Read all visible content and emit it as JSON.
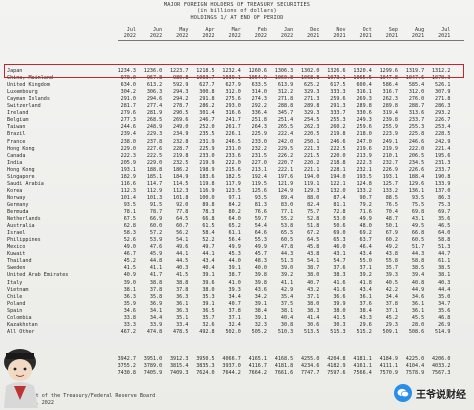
{
  "title": {
    "line1": "MAJOR FOREIGN HOLDERS OF TREASURY SECURITIES",
    "line2": "(in billions of dollars)",
    "line3": "HOLDINGS 1/ AT END OF PERIOD"
  },
  "columns": [
    {
      "month": "Jul",
      "year": "2022"
    },
    {
      "month": "Jun",
      "year": "2022"
    },
    {
      "month": "May",
      "year": "2022"
    },
    {
      "month": "Apr",
      "year": "2022"
    },
    {
      "month": "Mar",
      "year": "2022"
    },
    {
      "month": "Feb",
      "year": "2022"
    },
    {
      "month": "Jan",
      "year": "2022"
    },
    {
      "month": "Dec",
      "year": "2021"
    },
    {
      "month": "Nov",
      "year": "2021"
    },
    {
      "month": "Oct",
      "year": "2021"
    },
    {
      "month": "Sep",
      "year": "2021"
    },
    {
      "month": "Aug",
      "year": "2021"
    },
    {
      "month": "Jul",
      "year": "2021"
    }
  ],
  "rows": [
    {
      "name": "Japan",
      "values": [
        "1234.3",
        "1236.0",
        "1223.7",
        "1218.5",
        "1232.4",
        "1260.6",
        "1306.3",
        "1302.0",
        "1326.6",
        "1320.4",
        "1299.6",
        "1319.7",
        "1312.2"
      ]
    },
    {
      "name": "China, Mainland",
      "values": [
        "970.0",
        "967.8",
        "980.8",
        "1003.7",
        "1039.1",
        "1054.9",
        "1060.8",
        "1068.8",
        "1073.1",
        "1065.5",
        "1047.8",
        "1047.6",
        "1070.3"
      ]
    },
    {
      "name": "United Kingdom",
      "values": [
        "634.0",
        "613.2",
        "592.9",
        "627.7",
        "627.9",
        "633.5",
        "613.9",
        "625.2",
        "617.5",
        "600.4",
        "586.4",
        "585.4",
        "526.1"
      ]
    },
    {
      "name": "Luxembourg",
      "values": [
        "304.2",
        "306.3",
        "294.3",
        "300.8",
        "312.0",
        "314.0",
        "312.2",
        "329.3",
        "333.3",
        "316.1",
        "316.7",
        "312.0",
        "307.9"
      ]
    },
    {
      "name": "Cayman Islands",
      "values": [
        "291.0",
        "294.6",
        "294.2",
        "291.8",
        "275.6",
        "274.3",
        "271.8",
        "271.3",
        "259.6",
        "269.3",
        "262.3",
        "276.0",
        "271.8"
      ]
    },
    {
      "name": "Switzerland",
      "values": [
        "281.7",
        "277.4",
        "278.7",
        "286.2",
        "293.0",
        "292.2",
        "288.8",
        "289.8",
        "291.3",
        "289.8",
        "289.8",
        "288.7",
        "286.3"
      ]
    },
    {
      "name": "Ireland",
      "values": [
        "279.6",
        "281.9",
        "290.5",
        "301.4",
        "316.6",
        "336.4",
        "345.7",
        "329.3",
        "333.7",
        "330.6",
        "319.4",
        "313.6",
        "293.2"
      ]
    },
    {
      "name": "Belgium",
      "values": [
        "277.3",
        "268.5",
        "269.6",
        "246.7",
        "241.7",
        "251.8",
        "251.4",
        "254.5",
        "255.3",
        "249.3",
        "239.8",
        "233.7",
        "226.7"
      ]
    },
    {
      "name": "Taiwan",
      "values": [
        "244.6",
        "248.9",
        "249.0",
        "252.0",
        "261.7",
        "264.3",
        "265.5",
        "262.3",
        "260.2",
        "259.6",
        "255.9",
        "255.3",
        "253.4"
      ]
    },
    {
      "name": "Brazil",
      "values": [
        "239.4",
        "229.3",
        "234.9",
        "235.5",
        "226.1",
        "225.9",
        "222.4",
        "220.5",
        "219.8",
        "218.0",
        "223.9",
        "225.8",
        "228.5"
      ]
    },
    {
      "name": "France",
      "values": [
        "238.0",
        "237.8",
        "232.8",
        "231.9",
        "246.5",
        "233.0",
        "242.0",
        "250.1",
        "246.6",
        "247.0",
        "249.1",
        "246.6",
        "242.9"
      ]
    },
    {
      "name": "Hong Kong",
      "values": [
        "229.0",
        "227.6",
        "228.7",
        "225.9",
        "231.0",
        "232.2",
        "229.5",
        "221.3",
        "222.5",
        "219.6",
        "219.9",
        "222.0",
        "221.4"
      ]
    },
    {
      "name": "Canada",
      "values": [
        "222.3",
        "222.5",
        "219.8",
        "233.0",
        "233.6",
        "231.5",
        "226.2",
        "221.5",
        "220.0",
        "213.9",
        "210.1",
        "206.5",
        "195.6"
      ]
    },
    {
      "name": "India",
      "values": [
        "205.9",
        "229.0",
        "232.5",
        "219.9",
        "222.0",
        "227.0",
        "220.7",
        "220.2",
        "218.8",
        "222.3",
        "232.7",
        "234.5",
        "231.3"
      ]
    },
    {
      "name": "Hong Kong",
      "values": [
        "193.1",
        "188.8",
        "186.2",
        "198.9",
        "215.6",
        "213.1",
        "222.1",
        "221.1",
        "228.1",
        "232.1",
        "226.9",
        "226.6",
        "233.7"
      ]
    },
    {
      "name": "Singapore",
      "values": [
        "182.9",
        "185.1",
        "184.9",
        "183.6",
        "182.5",
        "192.4",
        "197.6",
        "194.0",
        "194.0",
        "193.5",
        "193.1",
        "188.4",
        "190.8"
      ]
    },
    {
      "name": "Saudi Arabia",
      "values": [
        "116.6",
        "114.7",
        "114.5",
        "119.8",
        "117.9",
        "119.5",
        "121.9",
        "119.1",
        "122.1",
        "124.8",
        "125.7",
        "129.6",
        "133.9"
      ]
    },
    {
      "name": "Korea",
      "values": [
        "112.3",
        "112.9",
        "112.3",
        "116.9",
        "123.5",
        "125.6",
        "124.9",
        "129.3",
        "132.0",
        "133.2",
        "133.2",
        "136.1",
        "137.0"
      ]
    },
    {
      "name": "Norway",
      "values": [
        "101.4",
        "101.3",
        "101.8",
        "100.0",
        "97.1",
        "93.5",
        "89.4",
        "88.0",
        "87.4",
        "90.7",
        "88.5",
        "93.5",
        "86.3"
      ]
    },
    {
      "name": "Germany",
      "values": [
        "93.5",
        "91.5",
        "92.0",
        "89.8",
        "84.2",
        "81.3",
        "83.0",
        "82.4",
        "81.1",
        "79.2",
        "76.5",
        "75.5",
        "75.3"
      ]
    },
    {
      "name": "Bermuda",
      "values": [
        "78.1",
        "78.7",
        "77.8",
        "78.3",
        "80.2",
        "76.6",
        "77.1",
        "75.7",
        "72.8",
        "71.6",
        "70.4",
        "69.8",
        "69.7"
      ]
    },
    {
      "name": "Netherlands",
      "values": [
        "67.5",
        "66.9",
        "64.5",
        "66.8",
        "64.0",
        "59.7",
        "55.2",
        "52.8",
        "53.0",
        "49.9",
        "48.7",
        "43.1",
        "35.6"
      ]
    },
    {
      "name": "Australia",
      "values": [
        "62.8",
        "60.0",
        "60.7",
        "61.5",
        "65.2",
        "54.4",
        "53.8",
        "51.8",
        "50.6",
        "48.0",
        "50.1",
        "49.5",
        "46.5"
      ]
    },
    {
      "name": "Israel",
      "values": [
        "58.3",
        "57.2",
        "56.2",
        "58.4",
        "61.1",
        "64.6",
        "65.5",
        "67.2",
        "69.0",
        "69.2",
        "67.9",
        "66.8",
        "64.0"
      ]
    },
    {
      "name": "Philippines",
      "values": [
        "52.6",
        "53.9",
        "54.1",
        "52.2",
        "56.4",
        "55.3",
        "60.5",
        "64.5",
        "65.3",
        "63.7",
        "60.2",
        "60.5",
        "58.8"
      ]
    },
    {
      "name": "Mexico",
      "values": [
        "49.0",
        "47.6",
        "49.6",
        "49.7",
        "49.9",
        "49.9",
        "47.8",
        "45.8",
        "46.0",
        "46.4",
        "49.2",
        "51.7",
        "51.3"
      ]
    },
    {
      "name": "Kuwait",
      "values": [
        "46.7",
        "45.9",
        "44.1",
        "44.1",
        "45.3",
        "45.7",
        "44.3",
        "43.8",
        "43.1",
        "43.4",
        "43.8",
        "44.3",
        "44.7"
      ]
    },
    {
      "name": "Thailand",
      "values": [
        "45.2",
        "44.8",
        "44.5",
        "43.4",
        "44.0",
        "48.3",
        "51.3",
        "54.1",
        "54.7",
        "55.0",
        "55.8",
        "58.8",
        "61.1"
      ]
    },
    {
      "name": "Sweden",
      "values": [
        "41.5",
        "41.1",
        "40.3",
        "40.4",
        "39.1",
        "40.0",
        "39.0",
        "38.7",
        "37.6",
        "37.1",
        "35.7",
        "38.5",
        "38.5"
      ]
    },
    {
      "name": "United Arab Emirates",
      "values": [
        "40.9",
        "41.7",
        "41.5",
        "39.1",
        "38.7",
        "39.8",
        "39.2",
        "38.0",
        "38.3",
        "39.2",
        "39.3",
        "39.4",
        "38.1"
      ]
    },
    {
      "name": "Italy",
      "values": [
        "39.0",
        "38.8",
        "38.8",
        "39.6",
        "41.0",
        "39.8",
        "41.1",
        "40.7",
        "41.6",
        "41.8",
        "40.5",
        "40.8",
        "40.3"
      ]
    },
    {
      "name": "Vietnam",
      "values": [
        "38.1",
        "37.8",
        "37.8",
        "38.0",
        "39.3",
        "43.6",
        "42.9",
        "43.2",
        "41.6",
        "43.4",
        "42.2",
        "44.9",
        "44.4"
      ]
    },
    {
      "name": "Chile",
      "values": [
        "36.3",
        "35.8",
        "36.3",
        "35.3",
        "34.4",
        "34.2",
        "35.4",
        "37.1",
        "36.6",
        "36.1",
        "34.4",
        "34.6",
        "35.0"
      ]
    },
    {
      "name": "Poland",
      "values": [
        "35.9",
        "36.9",
        "36.1",
        "39.1",
        "40.7",
        "39.1",
        "37.5",
        "38.0",
        "39.9",
        "37.6",
        "37.8",
        "36.1",
        "34.7"
      ]
    },
    {
      "name": "Spain",
      "values": [
        "34.6",
        "34.1",
        "36.3",
        "36.5",
        "37.8",
        "38.4",
        "38.1",
        "38.3",
        "38.0",
        "38.4",
        "37.1",
        "36.1",
        "35.6"
      ]
    },
    {
      "name": "Colombia",
      "values": [
        "33.8",
        "34.4",
        "35.1",
        "35.7",
        "37.1",
        "39.1",
        "40.4",
        "41.4",
        "41.5",
        "43.3",
        "45.2",
        "45.5",
        "46.8"
      ]
    },
    {
      "name": "Kazakhstan",
      "values": [
        "33.3",
        "33.9",
        "33.4",
        "32.6",
        "32.4",
        "32.3",
        "30.8",
        "30.6",
        "30.3",
        "29.6",
        "29.3",
        "28.0",
        "26.9"
      ]
    },
    {
      "name": "All Other",
      "values": [
        "467.2",
        "474.8",
        "478.5",
        "492.8",
        "502.0",
        "505.2",
        "510.3",
        "513.5",
        "515.3",
        "515.2",
        "509.1",
        "508.6",
        "514.9"
      ]
    }
  ],
  "totals": [
    {
      "name": "",
      "values": [
        "3942.7",
        "3951.0",
        "3912.3",
        "3950.5",
        "4066.7",
        "4165.1",
        "4168.5",
        "4255.0",
        "4204.8",
        "4181.1",
        "4184.9",
        "4225.0",
        "4206.0"
      ]
    },
    {
      "name": "",
      "values": [
        "3755.2",
        "3789.0",
        "3815.4",
        "3835.3",
        "3937.0",
        "4116.7",
        "4181.8",
        "4234.6",
        "4182.9",
        "4161.1",
        "4111.1",
        "4104.4",
        "4033.2"
      ]
    },
    {
      "name": "",
      "values": [
        "7430.8",
        "7405.9",
        "7409.3",
        "7624.0",
        "7644.2",
        "7664.2",
        "7661.6",
        "7747.7",
        "7597.6",
        "7566.4",
        "7570.9",
        "7578.9",
        "7567.3"
      ]
    }
  ],
  "footer": {
    "line1": "Department of the Treasury/Federal Reserve Board",
    "line2": "August 16, 2022"
  },
  "watermark": {
    "text": "王爷说财经",
    "icon": "wechat-icon"
  },
  "colors": {
    "highlight_box": "#c8232c",
    "watermark_icon": "#2a8ee8"
  }
}
